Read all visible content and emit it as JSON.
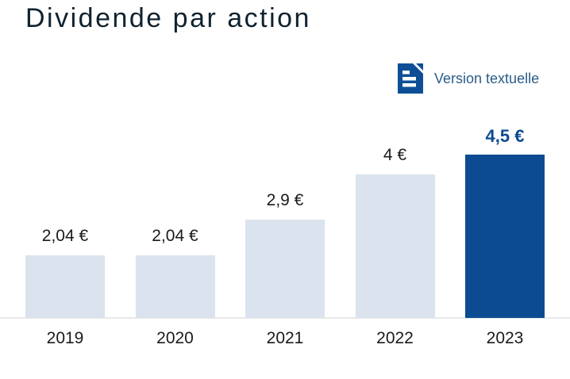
{
  "header": {
    "title": "Dividende par action",
    "text_version_label": "Version textuelle",
    "text_version_icon": "document-text-icon"
  },
  "colors": {
    "title": "#10222f",
    "link_text": "#2a5d87",
    "icon_blue": "#0d4e96",
    "bar_default": "#dae3ee",
    "bar_highlight": "#0c4b92",
    "label_text": "#1b1b1b",
    "baseline": "#e9e9e9"
  },
  "chart_data": {
    "type": "bar",
    "title": "Dividende par action",
    "categories": [
      "2019",
      "2020",
      "2021",
      "2022",
      "2023"
    ],
    "values": [
      2.04,
      2.04,
      2.9,
      4,
      4.5
    ],
    "value_labels": [
      "2,04 €",
      "2,04 €",
      "2,9 €",
      "4 €",
      "4,5 €"
    ],
    "unit": "€",
    "highlight_index": 4,
    "bar_color": "#dae3ee",
    "highlight_color": "#0c4b92",
    "xlabel": "",
    "ylabel": "",
    "ylim": [
      0,
      5
    ],
    "grid": false,
    "legend": false,
    "value_labels_position": "above-bars"
  }
}
